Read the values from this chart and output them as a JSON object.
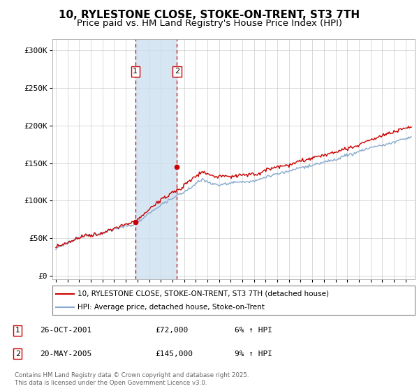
{
  "title": "10, RYLESTONE CLOSE, STOKE-ON-TRENT, ST3 7TH",
  "subtitle": "Price paid vs. HM Land Registry's House Price Index (HPI)",
  "ylabel_ticks": [
    "£0",
    "£50K",
    "£100K",
    "£150K",
    "£200K",
    "£250K",
    "£300K"
  ],
  "ytick_values": [
    0,
    50000,
    100000,
    150000,
    200000,
    250000,
    300000
  ],
  "ylim": [
    -5000,
    315000
  ],
  "xlim_start": 1994.7,
  "xlim_end": 2025.8,
  "purchase1_date": 2001.82,
  "purchase1_price": 72000,
  "purchase2_date": 2005.38,
  "purchase2_price": 145000,
  "line_color_red": "#cc0000",
  "line_color_blue": "#88aacc",
  "shade_color": "#cce0f0",
  "dashed_color": "#cc0000",
  "legend_label_red": "10, RYLESTONE CLOSE, STOKE-ON-TRENT, ST3 7TH (detached house)",
  "legend_label_blue": "HPI: Average price, detached house, Stoke-on-Trent",
  "footnote": "Contains HM Land Registry data © Crown copyright and database right 2025.\nThis data is licensed under the Open Government Licence v3.0.",
  "title_fontsize": 11,
  "subtitle_fontsize": 9.5,
  "tick_fontsize": 8,
  "background_color": "#ffffff"
}
